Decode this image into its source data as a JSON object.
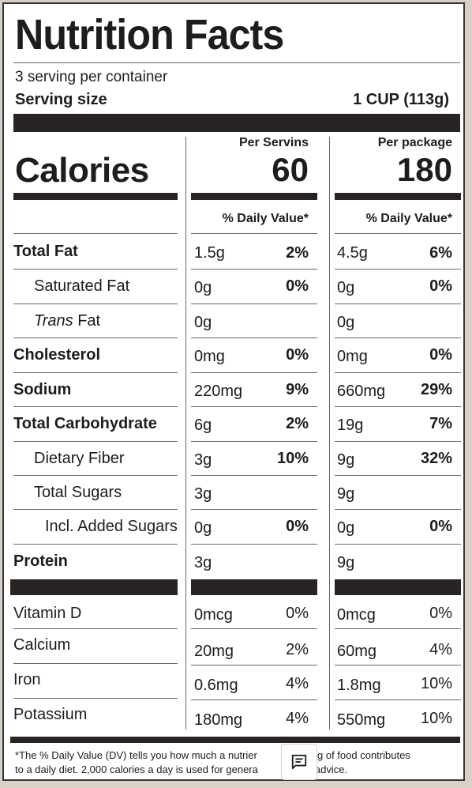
{
  "title": "Nutrition Facts",
  "servings_per_container": "3 serving per container",
  "serving_size_label": "Serving size",
  "serving_size_value": "1 CUP (113g)",
  "calories_label": "Calories",
  "columns": [
    {
      "header": "Per Servins",
      "calories": "60",
      "dv_header": "% Daily Value*"
    },
    {
      "header": "Per package",
      "calories": "180",
      "dv_header": "% Daily Value*"
    }
  ],
  "nutrients": [
    {
      "label": "Total Fat",
      "style": "bold",
      "per_serving": {
        "amount": "1.5g",
        "dv": "2%"
      },
      "per_package": {
        "amount": "4.5g",
        "dv": "6%"
      }
    },
    {
      "label": "Saturated Fat",
      "style": "indent1",
      "per_serving": {
        "amount": "0g",
        "dv": "0%"
      },
      "per_package": {
        "amount": "0g",
        "dv": "0%"
      }
    },
    {
      "label_italic": "Trans",
      "label": " Fat",
      "style": "indent1",
      "per_serving": {
        "amount": "0g",
        "dv": ""
      },
      "per_package": {
        "amount": "0g",
        "dv": ""
      }
    },
    {
      "label": "Cholesterol",
      "style": "bold",
      "per_serving": {
        "amount": "0mg",
        "dv": "0%"
      },
      "per_package": {
        "amount": "0mg",
        "dv": "0%"
      }
    },
    {
      "label": "Sodium",
      "style": "bold",
      "per_serving": {
        "amount": "220mg",
        "dv": "9%"
      },
      "per_package": {
        "amount": "660mg",
        "dv": "29%"
      }
    },
    {
      "label": "Total Carbohydrate",
      "style": "bold",
      "per_serving": {
        "amount": "6g",
        "dv": "2%"
      },
      "per_package": {
        "amount": "19g",
        "dv": "7%"
      }
    },
    {
      "label": "Dietary Fiber",
      "style": "indent1",
      "per_serving": {
        "amount": "3g",
        "dv": "10%"
      },
      "per_package": {
        "amount": "9g",
        "dv": "32%"
      }
    },
    {
      "label": "Total Sugars",
      "style": "indent1",
      "per_serving": {
        "amount": "3g",
        "dv": ""
      },
      "per_package": {
        "amount": "9g",
        "dv": ""
      }
    },
    {
      "label": "Incl. Added Sugars",
      "style": "indent2",
      "per_serving": {
        "amount": "0g",
        "dv": "0%"
      },
      "per_package": {
        "amount": "0g",
        "dv": "0%"
      }
    },
    {
      "label": "Protein",
      "style": "bold",
      "per_serving": {
        "amount": "3g",
        "dv": ""
      },
      "per_package": {
        "amount": "9g",
        "dv": ""
      }
    }
  ],
  "vitamins": [
    {
      "label": "Vitamin D",
      "per_serving": {
        "amount": "0mcg",
        "dv": "0%"
      },
      "per_package": {
        "amount": "0mcg",
        "dv": "0%"
      }
    },
    {
      "label": "Calcium",
      "per_serving": {
        "amount": "20mg",
        "dv": "2%"
      },
      "per_package": {
        "amount": "60mg",
        "dv": "4%"
      }
    },
    {
      "label": "Iron",
      "per_serving": {
        "amount": "0.6mg",
        "dv": "4%"
      },
      "per_package": {
        "amount": "1.8mg",
        "dv": "10%"
      }
    },
    {
      "label": "Potassium",
      "per_serving": {
        "amount": "180mg",
        "dv": "4%"
      },
      "per_package": {
        "amount": "550mg",
        "dv": "10%"
      }
    }
  ],
  "footnote": {
    "line1_left": "*The % Daily Value (DV) tells you how much a nutrier",
    "line1_right": "erving of food contributes",
    "line2_left": "to a daily diet. 2,000 calories a day is used for genera",
    "line2_right": "on advice."
  },
  "chat_button_icon": "chat-message-icon"
}
